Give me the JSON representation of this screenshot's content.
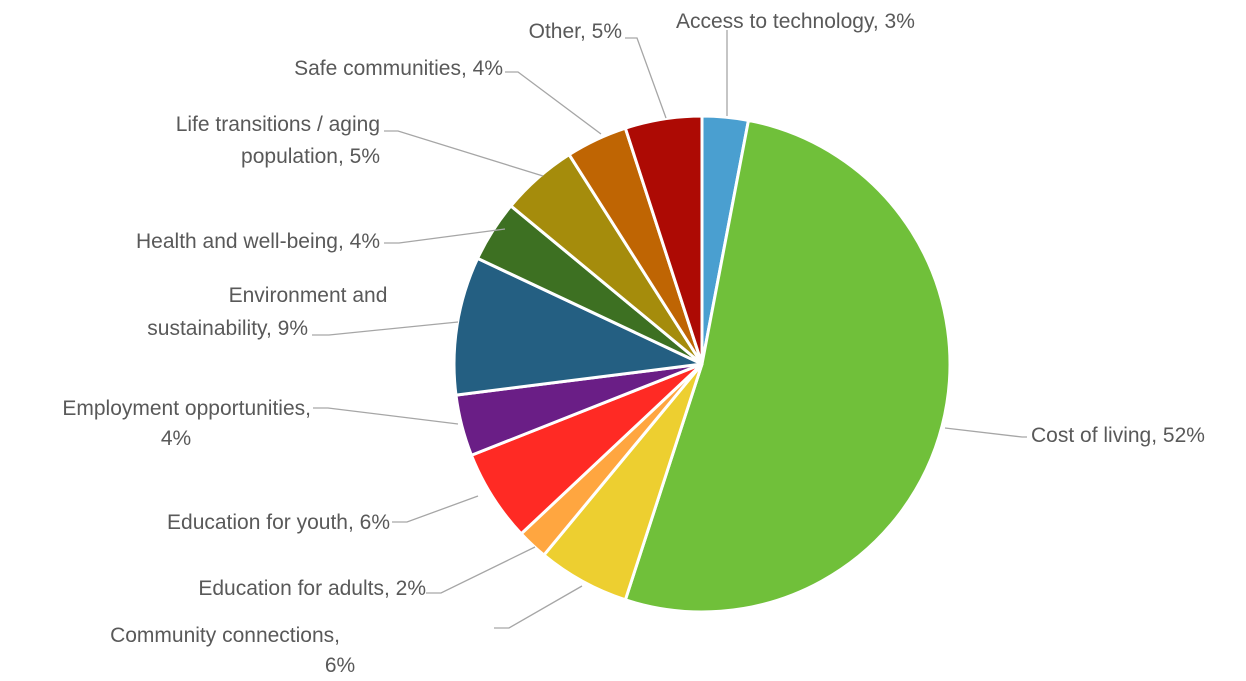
{
  "chart_data": {
    "type": "pie",
    "title": "",
    "start_angle_deg": 0,
    "direction": "clockwise",
    "slices": [
      {
        "category": "Access to technology",
        "value": 3,
        "label": "Access to technology, 3%",
        "color": "#4A9FD0"
      },
      {
        "category": "Cost of living",
        "value": 52,
        "label": "Cost of living, 52%",
        "color": "#70C03A"
      },
      {
        "category": "Community connections",
        "value": 6,
        "label": "Community connections, 6%",
        "color": "#EDCF30"
      },
      {
        "category": "Education for adults",
        "value": 2,
        "label": "Education for adults, 2%",
        "color": "#FFA640"
      },
      {
        "category": "Education for youth",
        "value": 6,
        "label": "Education for youth, 6%",
        "color": "#FF2A24"
      },
      {
        "category": "Employment opportunities",
        "value": 4,
        "label": "Employment opportunities, 4%",
        "color": "#6A1E86"
      },
      {
        "category": "Environment and sustainability",
        "value": 9,
        "label": "Environment and sustainability, 9%",
        "color": "#245F82"
      },
      {
        "category": "Health and well-being",
        "value": 4,
        "label": "Health and well-being, 4%",
        "color": "#3D7022"
      },
      {
        "category": "Life transitions / aging population",
        "value": 5,
        "label": "Life transitions / aging population, 5%",
        "color": "#A58C0C"
      },
      {
        "category": "Safe communities",
        "value": 4,
        "label": "Safe communities, 4%",
        "color": "#BF6503"
      },
      {
        "category": "Other",
        "value": 5,
        "label": "Other, 5%",
        "color": "#AD0A04"
      }
    ]
  }
}
